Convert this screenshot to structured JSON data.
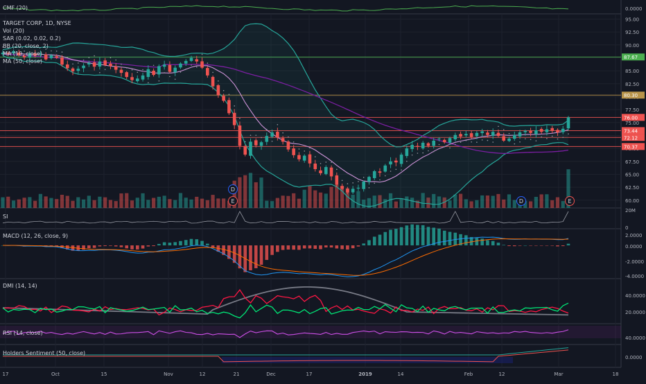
{
  "chart_data": {
    "type": "candlestick",
    "title": "TARGET CORP, 1D, NYSE",
    "indicator_legend": [
      "Vol (20)",
      "SAR (0.02, 0.02, 0.2)",
      "BB (20, close, 2)",
      "MA (10, close)",
      "MA (50, close)"
    ],
    "x_tick_labels": [
      "17",
      "Oct",
      "15",
      "Nov",
      "12",
      "21",
      "Dec",
      "17",
      "2019",
      "14",
      "Feb",
      "12",
      "Mar",
      "18"
    ],
    "price_axis": {
      "ticks": [
        "95.00",
        "92.50",
        "90.00",
        "87.50",
        "85.00",
        "82.50",
        "80.00",
        "77.50",
        "75.00",
        "72.50",
        "70.00",
        "67.50",
        "65.00",
        "62.50",
        "60.00"
      ],
      "ylim": [
        58.5,
        96
      ]
    },
    "volume_axis_tick": "20M",
    "price_tags": [
      {
        "label": "87.67",
        "value": 87.67,
        "color": "#4caf50"
      },
      {
        "label": "80.30",
        "value": 80.3,
        "color": "#b9944a"
      },
      {
        "label": "76.00",
        "value": 76.0,
        "color": "#ef5350"
      },
      {
        "label": "73.44",
        "value": 73.44,
        "color": "#ef5350"
      },
      {
        "label": "72.12",
        "value": 72.12,
        "color": "#ef5350"
      },
      {
        "label": "70.37",
        "value": 70.37,
        "color": "#ef5350"
      }
    ],
    "event_markers": [
      "D",
      "E",
      "D",
      "E"
    ],
    "close_series": [
      88.5,
      88.2,
      88.8,
      88.0,
      87.6,
      88.4,
      87.9,
      88.3,
      87.2,
      88.0,
      87.5,
      86.2,
      85.5,
      84.9,
      85.4,
      86.0,
      86.5,
      85.8,
      86.8,
      86.1,
      85.9,
      85.2,
      84.6,
      83.8,
      83.2,
      83.5,
      84.1,
      85.3,
      84.2,
      85.9,
      86.2,
      84.8,
      85.6,
      86.4,
      86.9,
      87.5,
      86.8,
      85.6,
      84.1,
      82.0,
      80.3,
      79.2,
      76.8,
      74.5,
      70.5,
      68.8,
      71.3,
      70.6,
      71.2,
      72.4,
      73.1,
      72.1,
      71.3,
      69.8,
      68.7,
      67.9,
      68.6,
      67.1,
      66.0,
      65.2,
      66.4,
      64.6,
      63.0,
      62.2,
      61.5,
      62.2,
      62.4,
      63.6,
      64.5,
      65.6,
      65.3,
      66.7,
      67.5,
      67.3,
      68.8,
      70.0,
      70.7,
      70.3,
      71.1,
      70.5,
      71.5,
      71.9,
      71.2,
      72.0,
      72.6,
      72.3,
      72.8,
      72.2,
      73.0,
      73.3,
      72.6,
      73.2,
      72.4,
      71.5,
      71.9,
      72.6,
      73.1,
      73.4,
      73.0,
      73.5,
      73.2,
      73.7,
      73.4,
      73.1,
      73.8,
      76.0
    ],
    "panes": [
      {
        "title": "CMF (20)",
        "ticks": [
          "0.0000"
        ]
      },
      {
        "title": "SI",
        "ticks": [
          "20M",
          "0"
        ]
      },
      {
        "title": "MACD (12, 26, close, 9)",
        "ticks": [
          "2.0000",
          "0.0000",
          "-2.0000",
          "-4.0000"
        ]
      },
      {
        "title": "DMI (14, 14)",
        "ticks": [
          "40.0000",
          "20.0000"
        ]
      },
      {
        "title": "RSI (14, close)",
        "ticks": [
          "40.0000"
        ]
      },
      {
        "title": "Holders Sentiment (50, close)",
        "ticks": [
          "0.0000"
        ]
      }
    ]
  },
  "colors": {
    "background": "#131722",
    "up": "#26a69a",
    "down": "#ef5350",
    "ma10": "#ce93d8",
    "ma50": "#7b1fa2",
    "bb": "#26a69a",
    "green_line": "#00e676",
    "red_line": "#ff1744",
    "gray_line": "#787b86",
    "rsi": "#9c27b0"
  }
}
